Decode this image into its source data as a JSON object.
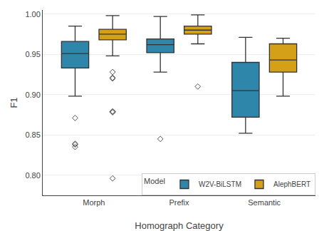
{
  "chart_data": {
    "type": "box",
    "xlabel": "Homograph Category",
    "ylabel": "F1",
    "categories": [
      "Morph",
      "Prefix",
      "Semantic"
    ],
    "ylim": [
      0.775,
      1.005
    ],
    "yticks": [
      {
        "value": 0.8,
        "label": "0.80"
      },
      0.85,
      {
        "value": 0.9,
        "label": "0.90"
      },
      0.95,
      {
        "value": 1.0,
        "label": "1.00"
      }
    ],
    "grid": true,
    "legend": "lower right",
    "legend_title": "Model",
    "series": [
      {
        "name": "W2V-BiLSTM",
        "color": "#2E86AB",
        "values": [
          {
            "whislo": 0.898,
            "q1": 0.933,
            "med": 0.951,
            "q3": 0.966,
            "whishi": 0.985,
            "fliers": [
              0.871,
              0.839,
              0.838,
              0.835
            ]
          },
          {
            "whislo": 0.928,
            "q1": 0.952,
            "med": 0.962,
            "q3": 0.969,
            "whishi": 0.997,
            "fliers": [
              0.845
            ]
          },
          {
            "whislo": 0.852,
            "q1": 0.872,
            "med": 0.905,
            "q3": 0.94,
            "whishi": 0.971,
            "fliers": []
          }
        ]
      },
      {
        "name": "AlephBERT",
        "color": "#D4A017",
        "values": [
          {
            "whislo": 0.948,
            "q1": 0.968,
            "med": 0.975,
            "q3": 0.981,
            "whishi": 0.998,
            "fliers": [
              0.928,
              0.921,
              0.92,
              0.879,
              0.879,
              0.878,
              0.796
            ]
          },
          {
            "whislo": 0.963,
            "q1": 0.975,
            "med": 0.98,
            "q3": 0.985,
            "whishi": 0.999,
            "fliers": [
              0.91
            ]
          },
          {
            "whislo": 0.898,
            "q1": 0.928,
            "med": 0.943,
            "q3": 0.963,
            "whishi": 0.97,
            "fliers": []
          }
        ]
      }
    ]
  }
}
